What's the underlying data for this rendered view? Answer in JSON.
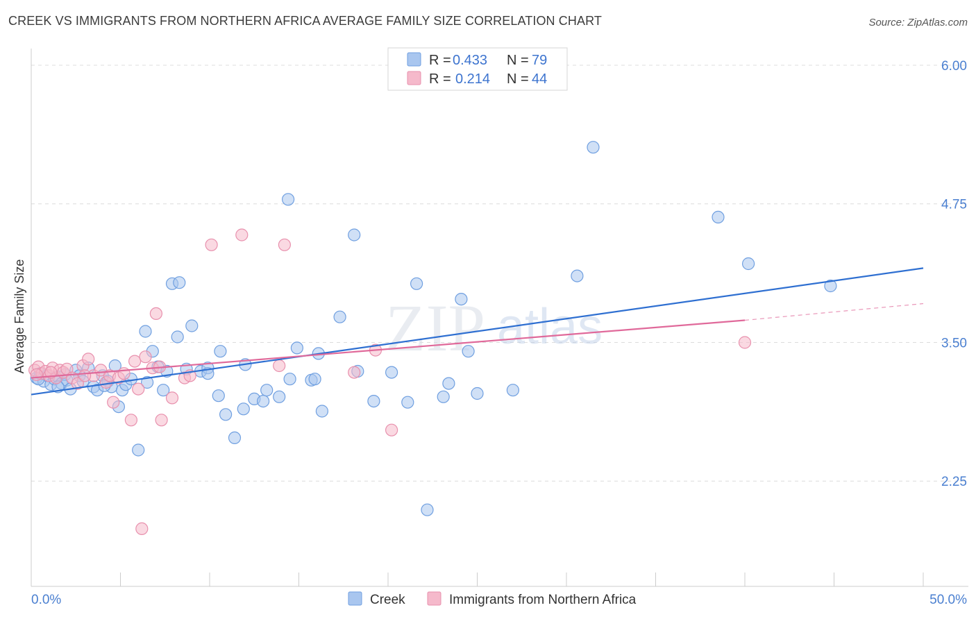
{
  "title": "CREEK VS IMMIGRANTS FROM NORTHERN AFRICA AVERAGE FAMILY SIZE CORRELATION CHART",
  "source": "Source: ZipAtlas.com",
  "watermark": {
    "zip": "ZIP",
    "atlas": "atlas"
  },
  "colors": {
    "creek_fill": "#a9c6ef",
    "creek_stroke": "#6f9fe0",
    "creek_line": "#2e6fd1",
    "immig_fill": "#f5b9cb",
    "immig_stroke": "#e890ad",
    "immig_line": "#e0699a",
    "grid": "#dcdcdc",
    "tick_text": "#4a7fd0"
  },
  "legend": {
    "rows": [
      {
        "r_label": "R = ",
        "r_value": "0.433",
        "n_label": "N = ",
        "n_value": "79"
      },
      {
        "r_label": "R = ",
        "r_value": "0.214",
        "n_label": "N = ",
        "n_value": "44"
      }
    ]
  },
  "chart_data": {
    "type": "scatter",
    "title": "CREEK VS IMMIGRANTS FROM NORTHERN AFRICA AVERAGE FAMILY SIZE CORRELATION CHART",
    "xlabel": "",
    "ylabel": "Average Family Size",
    "xlim": [
      0,
      50
    ],
    "ylim": [
      1.3,
      6.15
    ],
    "x_tick_labels": [
      "0.0%",
      "50.0%"
    ],
    "y_ticks": [
      2.25,
      3.5,
      4.75,
      6.0
    ],
    "y_tick_labels": [
      "2.25",
      "3.50",
      "4.75",
      "6.00"
    ],
    "grid": true,
    "legend_position": "top-center and bottom",
    "series": [
      {
        "name": "Creek",
        "points": [
          [
            0.3,
            3.18
          ],
          [
            0.5,
            3.22
          ],
          [
            0.7,
            3.15
          ],
          [
            0.9,
            3.2
          ],
          [
            1.1,
            3.12
          ],
          [
            1.3,
            3.17
          ],
          [
            1.5,
            3.19
          ],
          [
            1.7,
            3.13
          ],
          [
            1.9,
            3.21
          ],
          [
            2.0,
            3.16
          ],
          [
            2.2,
            3.08
          ],
          [
            2.5,
            3.25
          ],
          [
            2.7,
            3.2
          ],
          [
            2.9,
            3.15
          ],
          [
            3.2,
            3.27
          ],
          [
            3.5,
            3.1
          ],
          [
            3.7,
            3.07
          ],
          [
            4.0,
            3.2
          ],
          [
            4.3,
            3.15
          ],
          [
            4.5,
            3.1
          ],
          [
            4.7,
            3.29
          ],
          [
            4.9,
            2.92
          ],
          [
            5.1,
            3.07
          ],
          [
            5.3,
            3.12
          ],
          [
            5.6,
            3.17
          ],
          [
            6.0,
            2.53
          ],
          [
            6.4,
            3.6
          ],
          [
            6.5,
            3.14
          ],
          [
            6.8,
            3.42
          ],
          [
            7.1,
            3.28
          ],
          [
            7.4,
            3.07
          ],
          [
            7.6,
            3.24
          ],
          [
            7.9,
            4.03
          ],
          [
            8.2,
            3.55
          ],
          [
            8.3,
            4.04
          ],
          [
            8.7,
            3.26
          ],
          [
            9.0,
            3.65
          ],
          [
            9.5,
            3.24
          ],
          [
            9.9,
            3.27
          ],
          [
            10.5,
            3.02
          ],
          [
            10.6,
            3.42
          ],
          [
            10.9,
            2.85
          ],
          [
            11.4,
            2.64
          ],
          [
            11.9,
            2.9
          ],
          [
            12.0,
            3.3
          ],
          [
            12.5,
            2.99
          ],
          [
            13.0,
            2.97
          ],
          [
            13.2,
            3.07
          ],
          [
            13.9,
            3.01
          ],
          [
            14.4,
            4.79
          ],
          [
            14.5,
            3.17
          ],
          [
            14.9,
            3.45
          ],
          [
            15.7,
            3.16
          ],
          [
            15.9,
            3.17
          ],
          [
            16.1,
            3.4
          ],
          [
            16.3,
            2.88
          ],
          [
            17.3,
            3.73
          ],
          [
            18.1,
            4.47
          ],
          [
            18.3,
            3.24
          ],
          [
            19.2,
            2.97
          ],
          [
            20.2,
            3.23
          ],
          [
            21.1,
            2.96
          ],
          [
            21.6,
            4.03
          ],
          [
            22.2,
            1.99
          ],
          [
            23.1,
            3.01
          ],
          [
            23.4,
            3.13
          ],
          [
            24.1,
            3.89
          ],
          [
            24.5,
            3.42
          ],
          [
            25.0,
            3.04
          ],
          [
            27.0,
            3.07
          ],
          [
            30.6,
            4.1
          ],
          [
            31.5,
            5.26
          ],
          [
            38.5,
            4.63
          ],
          [
            40.2,
            4.21
          ],
          [
            44.8,
            4.01
          ],
          [
            4.1,
            3.11
          ],
          [
            9.9,
            3.22
          ],
          [
            1.5,
            3.1
          ],
          [
            0.4,
            3.17
          ]
        ]
      },
      {
        "name": "Immigrants from Northern Africa",
        "points": [
          [
            0.2,
            3.25
          ],
          [
            0.4,
            3.28
          ],
          [
            0.6,
            3.22
          ],
          [
            0.8,
            3.24
          ],
          [
            1.0,
            3.2
          ],
          [
            1.2,
            3.27
          ],
          [
            1.4,
            3.18
          ],
          [
            1.6,
            3.25
          ],
          [
            1.8,
            3.23
          ],
          [
            2.0,
            3.26
          ],
          [
            2.3,
            3.18
          ],
          [
            2.6,
            3.13
          ],
          [
            2.9,
            3.29
          ],
          [
            3.2,
            3.35
          ],
          [
            3.5,
            3.2
          ],
          [
            3.9,
            3.25
          ],
          [
            4.2,
            3.14
          ],
          [
            4.4,
            3.2
          ],
          [
            4.6,
            2.96
          ],
          [
            4.9,
            3.18
          ],
          [
            5.2,
            3.22
          ],
          [
            5.6,
            2.8
          ],
          [
            5.8,
            3.33
          ],
          [
            6.0,
            3.08
          ],
          [
            6.2,
            1.82
          ],
          [
            6.4,
            3.37
          ],
          [
            6.8,
            3.27
          ],
          [
            7.0,
            3.76
          ],
          [
            7.2,
            3.28
          ],
          [
            7.3,
            2.8
          ],
          [
            7.9,
            3.0
          ],
          [
            8.6,
            3.18
          ],
          [
            8.9,
            3.2
          ],
          [
            10.1,
            4.38
          ],
          [
            11.8,
            4.47
          ],
          [
            13.9,
            3.29
          ],
          [
            14.2,
            4.38
          ],
          [
            18.1,
            3.23
          ],
          [
            19.3,
            3.43
          ],
          [
            20.2,
            2.71
          ],
          [
            40.0,
            3.5
          ],
          [
            3.0,
            3.2
          ],
          [
            1.1,
            3.23
          ],
          [
            0.3,
            3.21
          ]
        ]
      }
    ],
    "trend_lines": [
      {
        "name": "Creek",
        "x": [
          0,
          50
        ],
        "y": [
          3.03,
          4.17
        ]
      },
      {
        "name": "Immigrants from Northern Africa",
        "x": [
          0,
          40
        ],
        "y": [
          3.18,
          3.7
        ],
        "dashed_x": [
          40,
          50
        ],
        "dashed_y": [
          3.7,
          3.85
        ]
      }
    ]
  }
}
